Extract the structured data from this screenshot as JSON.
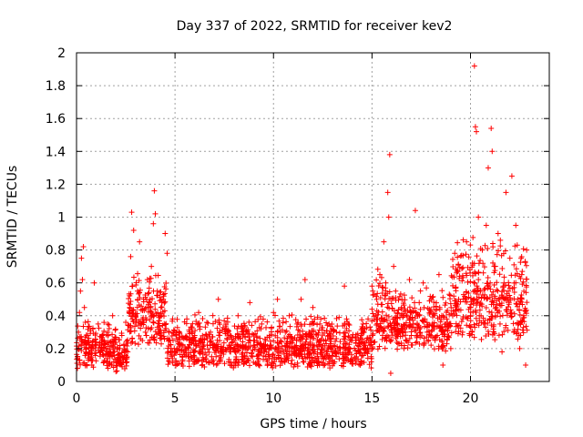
{
  "chart_data": {
    "type": "scatter",
    "title": "Day 337 of 2022, SRMTID for receiver kev2",
    "xlabel": "GPS time / hours",
    "ylabel": "SRMTID / TECUs",
    "xlim": [
      0,
      24
    ],
    "ylim": [
      0,
      2
    ],
    "xticks": [
      0,
      5,
      10,
      15,
      20
    ],
    "xtick_labels": [
      "0",
      "5",
      "10",
      "15",
      "20"
    ],
    "yticks": [
      0,
      0.2,
      0.4,
      0.6,
      0.8,
      1,
      1.2,
      1.4,
      1.6,
      1.8,
      2
    ],
    "ytick_labels": [
      "0",
      "0.2",
      "0.4",
      "0.6",
      "0.8",
      "1",
      "1.2",
      "1.4",
      "1.6",
      "1.8",
      "2"
    ],
    "grid": true,
    "marker": "+",
    "color": "#ff0000",
    "series": [
      {
        "name": "SRMTID",
        "points": [
          [
            0.05,
            0.08
          ],
          [
            0.1,
            0.3
          ],
          [
            0.15,
            0.42
          ],
          [
            0.2,
            0.55
          ],
          [
            0.25,
            0.75
          ],
          [
            0.3,
            0.62
          ],
          [
            0.35,
            0.82
          ],
          [
            0.4,
            0.45
          ],
          [
            0.45,
            0.36
          ],
          [
            0.5,
            0.2
          ],
          [
            0.55,
            0.28
          ],
          [
            0.6,
            0.25
          ],
          [
            0.7,
            0.15
          ],
          [
            0.8,
            0.22
          ],
          [
            0.9,
            0.6
          ],
          [
            1.0,
            0.22
          ],
          [
            1.1,
            0.35
          ],
          [
            1.2,
            0.18
          ],
          [
            1.3,
            0.28
          ],
          [
            1.4,
            0.12
          ],
          [
            1.5,
            0.2
          ],
          [
            1.6,
            0.08
          ],
          [
            1.7,
            0.15
          ],
          [
            1.8,
            0.1
          ],
          [
            1.9,
            0.18
          ],
          [
            2.0,
            0.06
          ],
          [
            2.1,
            0.14
          ],
          [
            2.2,
            0.2
          ],
          [
            2.3,
            0.28
          ],
          [
            2.4,
            0.22
          ],
          [
            2.5,
            0.36
          ],
          [
            2.6,
            0.18
          ],
          [
            2.7,
            0.45
          ],
          [
            2.75,
            0.76
          ],
          [
            2.8,
            1.03
          ],
          [
            2.85,
            0.58
          ],
          [
            2.9,
            0.92
          ],
          [
            3.0,
            0.4
          ],
          [
            3.1,
            0.55
          ],
          [
            3.2,
            0.85
          ],
          [
            3.3,
            0.35
          ],
          [
            3.4,
            0.5
          ],
          [
            3.5,
            0.3
          ],
          [
            3.6,
            0.62
          ],
          [
            3.7,
            0.48
          ],
          [
            3.8,
            0.7
          ],
          [
            3.9,
            0.96
          ],
          [
            3.95,
            1.16
          ],
          [
            4.0,
            1.02
          ],
          [
            4.1,
            0.55
          ],
          [
            4.2,
            0.4
          ],
          [
            4.3,
            0.28
          ],
          [
            4.4,
            0.5
          ],
          [
            4.5,
            0.9
          ],
          [
            4.6,
            0.78
          ],
          [
            4.7,
            0.3
          ],
          [
            4.8,
            0.2
          ],
          [
            4.9,
            0.25
          ],
          [
            5.0,
            0.18
          ],
          [
            5.2,
            0.3
          ],
          [
            5.4,
            0.22
          ],
          [
            5.6,
            0.38
          ],
          [
            5.8,
            0.15
          ],
          [
            6.0,
            0.28
          ],
          [
            6.2,
            0.42
          ],
          [
            6.4,
            0.2
          ],
          [
            6.6,
            0.12
          ],
          [
            6.8,
            0.3
          ],
          [
            7.0,
            0.22
          ],
          [
            7.2,
            0.5
          ],
          [
            7.4,
            0.18
          ],
          [
            7.6,
            0.32
          ],
          [
            7.8,
            0.1
          ],
          [
            8.0,
            0.25
          ],
          [
            8.2,
            0.4
          ],
          [
            8.4,
            0.15
          ],
          [
            8.6,
            0.3
          ],
          [
            8.8,
            0.48
          ],
          [
            9.0,
            0.22
          ],
          [
            9.2,
            0.12
          ],
          [
            9.4,
            0.35
          ],
          [
            9.6,
            0.2
          ],
          [
            9.8,
            0.28
          ],
          [
            10.0,
            0.42
          ],
          [
            10.2,
            0.5
          ],
          [
            10.4,
            0.18
          ],
          [
            10.6,
            0.3
          ],
          [
            10.8,
            0.4
          ],
          [
            11.0,
            0.25
          ],
          [
            11.2,
            0.35
          ],
          [
            11.4,
            0.5
          ],
          [
            11.6,
            0.62
          ],
          [
            11.8,
            0.3
          ],
          [
            12.0,
            0.45
          ],
          [
            12.2,
            0.22
          ],
          [
            12.4,
            0.38
          ],
          [
            12.6,
            0.15
          ],
          [
            12.8,
            0.28
          ],
          [
            13.0,
            0.12
          ],
          [
            13.2,
            0.3
          ],
          [
            13.4,
            0.2
          ],
          [
            13.6,
            0.58
          ],
          [
            13.8,
            0.35
          ],
          [
            14.0,
            0.25
          ],
          [
            14.2,
            0.15
          ],
          [
            14.4,
            0.1
          ],
          [
            14.6,
            0.3
          ],
          [
            14.8,
            0.38
          ],
          [
            15.0,
            0.58
          ],
          [
            15.2,
            0.4
          ],
          [
            15.4,
            0.65
          ],
          [
            15.6,
            0.85
          ],
          [
            15.7,
            0.6
          ],
          [
            15.8,
            1.15
          ],
          [
            15.85,
            1.0
          ],
          [
            15.9,
            1.38
          ],
          [
            15.95,
            0.05
          ],
          [
            16.0,
            0.3
          ],
          [
            16.1,
            0.7
          ],
          [
            16.2,
            0.55
          ],
          [
            16.3,
            0.35
          ],
          [
            16.5,
            0.45
          ],
          [
            16.7,
            0.3
          ],
          [
            16.9,
            0.62
          ],
          [
            17.0,
            0.28
          ],
          [
            17.2,
            1.04
          ],
          [
            17.4,
            0.4
          ],
          [
            17.6,
            0.6
          ],
          [
            17.8,
            0.3
          ],
          [
            18.0,
            0.5
          ],
          [
            18.2,
            0.25
          ],
          [
            18.4,
            0.65
          ],
          [
            18.6,
            0.1
          ],
          [
            18.8,
            0.38
          ],
          [
            19.0,
            0.2
          ],
          [
            19.2,
            0.78
          ],
          [
            19.4,
            0.5
          ],
          [
            19.6,
            0.3
          ],
          [
            19.8,
            0.85
          ],
          [
            20.0,
            0.4
          ],
          [
            20.1,
            0.72
          ],
          [
            20.2,
            1.92
          ],
          [
            20.25,
            1.55
          ],
          [
            20.3,
            1.52
          ],
          [
            20.4,
            1.0
          ],
          [
            20.5,
            0.55
          ],
          [
            20.6,
            0.8
          ],
          [
            20.7,
            0.35
          ],
          [
            20.8,
            0.95
          ],
          [
            20.9,
            1.3
          ],
          [
            21.0,
            0.6
          ],
          [
            21.05,
            1.54
          ],
          [
            21.1,
            1.4
          ],
          [
            21.2,
            0.7
          ],
          [
            21.3,
            0.45
          ],
          [
            21.4,
            0.9
          ],
          [
            21.5,
            0.35
          ],
          [
            21.6,
            0.18
          ],
          [
            21.7,
            0.6
          ],
          [
            21.8,
            1.15
          ],
          [
            21.9,
            0.5
          ],
          [
            22.0,
            0.75
          ],
          [
            22.1,
            1.25
          ],
          [
            22.2,
            0.3
          ],
          [
            22.3,
            0.95
          ],
          [
            22.4,
            0.5
          ],
          [
            22.5,
            0.2
          ],
          [
            22.6,
            0.65
          ],
          [
            22.7,
            0.4
          ],
          [
            22.8,
            0.1
          ],
          [
            22.85,
            0.8
          ]
        ]
      }
    ],
    "noise_bands": [
      [
        0.0,
        2.0,
        0.08,
        0.42
      ],
      [
        2.0,
        2.6,
        0.05,
        0.3
      ],
      [
        2.6,
        4.6,
        0.22,
        0.7
      ],
      [
        4.6,
        15.0,
        0.08,
        0.42
      ],
      [
        15.0,
        16.2,
        0.18,
        0.72
      ],
      [
        16.2,
        19.0,
        0.18,
        0.6
      ],
      [
        19.0,
        22.9,
        0.25,
        0.9
      ]
    ]
  }
}
